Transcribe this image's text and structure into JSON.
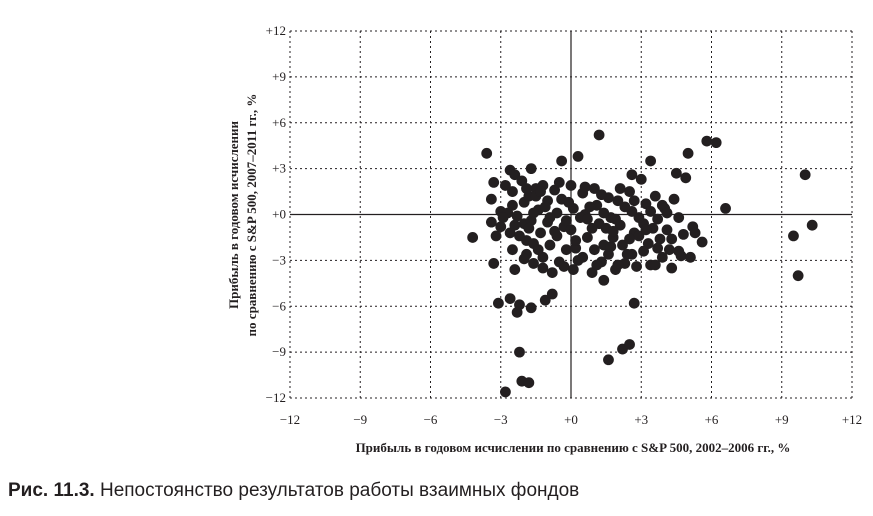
{
  "caption": {
    "label": "Рис. 11.3.",
    "text": "Непостоянство результатов работы взаимных фондов"
  },
  "chart_data": {
    "type": "scatter",
    "xlabel": "Прибыль в годовом исчислении по сравнению с S&P 500, 2002–2006 гг., %",
    "ylabel_lines": [
      "Прибыль в годовом исчислении",
      "по сравнению с S&P 500, 2007–2011 гг., %"
    ],
    "xlim": [
      -12,
      12
    ],
    "ylim": [
      -12,
      12
    ],
    "x_ticks": [
      {
        "value": -12,
        "label": "−12"
      },
      {
        "value": -9,
        "label": "−9"
      },
      {
        "value": -6,
        "label": "−6"
      },
      {
        "value": -3,
        "label": "−3"
      },
      {
        "value": 0,
        "label": "+0"
      },
      {
        "value": 3,
        "label": "+3"
      },
      {
        "value": 6,
        "label": "+6"
      },
      {
        "value": 9,
        "label": "+9"
      },
      {
        "value": 12,
        "label": "+12"
      }
    ],
    "y_ticks": [
      {
        "value": 12,
        "label": "+12"
      },
      {
        "value": 9,
        "label": "+9"
      },
      {
        "value": 6,
        "label": "+6"
      },
      {
        "value": 3,
        "label": "+3"
      },
      {
        "value": 0,
        "label": "+0"
      },
      {
        "value": -3,
        "label": "−3"
      },
      {
        "value": -6,
        "label": "−6"
      },
      {
        "value": -9,
        "label": "−9"
      },
      {
        "value": -12,
        "label": "−12"
      }
    ],
    "grid": true,
    "marker_color": "#231f20",
    "points": [
      [
        -3.6,
        4.0
      ],
      [
        -3.3,
        2.1
      ],
      [
        -3.4,
        1.0
      ],
      [
        -3.4,
        -0.5
      ],
      [
        -3.0,
        0.2
      ],
      [
        -3.2,
        -1.4
      ],
      [
        -3.3,
        -3.2
      ],
      [
        -3.1,
        -5.8
      ],
      [
        -4.2,
        -1.5
      ],
      [
        -2.6,
        2.9
      ],
      [
        -2.8,
        1.9
      ],
      [
        -2.5,
        1.5
      ],
      [
        -2.4,
        2.6
      ],
      [
        -2.3,
        -0.1
      ],
      [
        -2.7,
        0.1
      ],
      [
        -2.6,
        -1.2
      ],
      [
        -2.5,
        -2.3
      ],
      [
        -2.4,
        -3.6
      ],
      [
        -2.6,
        -5.5
      ],
      [
        -2.3,
        -6.4
      ],
      [
        -2.2,
        -5.9
      ],
      [
        -2.2,
        -9.0
      ],
      [
        -2.1,
        -10.9
      ],
      [
        -1.8,
        -11.0
      ],
      [
        -2.8,
        -11.6
      ],
      [
        -2.1,
        2.2
      ],
      [
        -2.0,
        0.8
      ],
      [
        -2.0,
        -0.6
      ],
      [
        -1.9,
        -1.7
      ],
      [
        -1.9,
        -2.6
      ],
      [
        -1.7,
        3.0
      ],
      [
        -1.8,
        1.2
      ],
      [
        -1.7,
        -0.4
      ],
      [
        -1.6,
        -1.9
      ],
      [
        -1.6,
        -3.2
      ],
      [
        -1.7,
        -6.1
      ],
      [
        -1.5,
        1.7
      ],
      [
        -1.4,
        0.3
      ],
      [
        -1.3,
        -1.2
      ],
      [
        -1.2,
        -2.8
      ],
      [
        -1.1,
        -5.6
      ],
      [
        -1.2,
        1.9
      ],
      [
        -1.0,
        0.9
      ],
      [
        -1.0,
        -0.5
      ],
      [
        -0.9,
        -2.0
      ],
      [
        -0.8,
        -3.8
      ],
      [
        -0.7,
        1.6
      ],
      [
        -0.6,
        0.1
      ],
      [
        -0.6,
        -1.4
      ],
      [
        -0.5,
        -3.1
      ],
      [
        -0.8,
        -5.2
      ],
      [
        -0.4,
        3.5
      ],
      [
        -0.4,
        1.0
      ],
      [
        -0.3,
        -0.8
      ],
      [
        -0.2,
        -2.3
      ],
      [
        -0.3,
        -3.4
      ],
      [
        0.0,
        1.9
      ],
      [
        0.1,
        0.4
      ],
      [
        0.0,
        -1.0
      ],
      [
        0.2,
        -2.2
      ],
      [
        0.1,
        -3.6
      ],
      [
        0.3,
        3.8
      ],
      [
        0.5,
        1.4
      ],
      [
        0.6,
        0.0
      ],
      [
        0.7,
        -1.5
      ],
      [
        0.5,
        -2.8
      ],
      [
        0.9,
        -3.8
      ],
      [
        1.2,
        5.2
      ],
      [
        1.0,
        1.7
      ],
      [
        1.1,
        0.6
      ],
      [
        1.2,
        -0.6
      ],
      [
        1.4,
        -2.0
      ],
      [
        1.3,
        -3.1
      ],
      [
        1.4,
        -4.3
      ],
      [
        1.6,
        1.1
      ],
      [
        1.7,
        -0.2
      ],
      [
        1.8,
        -1.5
      ],
      [
        1.6,
        -2.6
      ],
      [
        1.9,
        -3.6
      ],
      [
        1.6,
        -9.5
      ],
      [
        2.0,
        0.9
      ],
      [
        2.1,
        -0.7
      ],
      [
        2.2,
        -2.0
      ],
      [
        2.3,
        -3.2
      ],
      [
        2.2,
        -8.8
      ],
      [
        2.5,
        -8.5
      ],
      [
        2.6,
        2.6
      ],
      [
        2.5,
        1.5
      ],
      [
        2.6,
        0.2
      ],
      [
        2.7,
        -1.2
      ],
      [
        2.6,
        -2.6
      ],
      [
        2.8,
        -3.4
      ],
      [
        2.7,
        -5.8
      ],
      [
        3.0,
        2.3
      ],
      [
        3.2,
        0.7
      ],
      [
        3.1,
        -0.6
      ],
      [
        3.3,
        -1.9
      ],
      [
        3.4,
        -3.3
      ],
      [
        3.4,
        3.5
      ],
      [
        3.6,
        1.2
      ],
      [
        3.7,
        -0.3
      ],
      [
        3.8,
        -1.6
      ],
      [
        3.9,
        -2.8
      ],
      [
        4.0,
        0.4
      ],
      [
        4.1,
        -1.0
      ],
      [
        4.2,
        -2.3
      ],
      [
        4.3,
        -3.5
      ],
      [
        4.4,
        1.0
      ],
      [
        4.5,
        2.7
      ],
      [
        4.6,
        -0.2
      ],
      [
        4.8,
        -1.3
      ],
      [
        4.7,
        -2.7
      ],
      [
        4.9,
        2.4
      ],
      [
        5.0,
        4.0
      ],
      [
        5.2,
        -0.8
      ],
      [
        5.1,
        -2.8
      ],
      [
        5.3,
        -1.2
      ],
      [
        5.6,
        -1.8
      ],
      [
        5.8,
        4.8
      ],
      [
        6.2,
        4.7
      ],
      [
        6.6,
        0.4
      ],
      [
        9.5,
        -1.4
      ],
      [
        9.7,
        -4.0
      ],
      [
        10.0,
        2.6
      ],
      [
        10.3,
        -0.7
      ],
      [
        -2.9,
        -0.2
      ],
      [
        -1.5,
        1.2
      ],
      [
        -1.1,
        0.5
      ],
      [
        -0.2,
        -0.4
      ],
      [
        0.4,
        -0.2
      ],
      [
        0.8,
        0.5
      ],
      [
        1.5,
        -0.9
      ],
      [
        1.9,
        -0.3
      ],
      [
        2.3,
        0.5
      ],
      [
        2.9,
        -1.4
      ],
      [
        3.5,
        -0.9
      ],
      [
        3.9,
        0.6
      ],
      [
        4.3,
        -1.6
      ],
      [
        -2.2,
        -1.4
      ],
      [
        -1.4,
        -2.3
      ],
      [
        -0.7,
        -1.1
      ],
      [
        0.2,
        -1.7
      ],
      [
        1.0,
        -2.3
      ],
      [
        1.7,
        -2.1
      ],
      [
        2.4,
        -2.6
      ],
      [
        3.1,
        -2.4
      ],
      [
        -2.5,
        0.6
      ],
      [
        -1.9,
        1.7
      ],
      [
        -1.3,
        1.5
      ],
      [
        -0.5,
        2.1
      ],
      [
        0.6,
        1.8
      ],
      [
        1.3,
        1.3
      ],
      [
        2.1,
        1.7
      ],
      [
        2.7,
        0.9
      ],
      [
        3.4,
        0.2
      ],
      [
        4.1,
        0.1
      ],
      [
        -3.0,
        -0.8
      ],
      [
        -2.0,
        -2.9
      ],
      [
        -1.2,
        -3.5
      ],
      [
        0.3,
        -3.0
      ],
      [
        1.1,
        -3.3
      ],
      [
        2.0,
        -3.3
      ],
      [
        3.6,
        -3.3
      ],
      [
        -2.4,
        -0.7
      ],
      [
        -1.6,
        0.1
      ],
      [
        -0.9,
        -0.2
      ],
      [
        0.9,
        -0.9
      ],
      [
        1.8,
        -1.1
      ],
      [
        2.5,
        -1.6
      ],
      [
        3.2,
        -1.0
      ],
      [
        4.6,
        -2.4
      ],
      [
        -1.8,
        -0.9
      ],
      [
        -0.1,
        0.8
      ],
      [
        0.7,
        -0.3
      ],
      [
        1.4,
        0.1
      ],
      [
        2.9,
        -0.2
      ],
      [
        3.7,
        -2.2
      ]
    ]
  }
}
